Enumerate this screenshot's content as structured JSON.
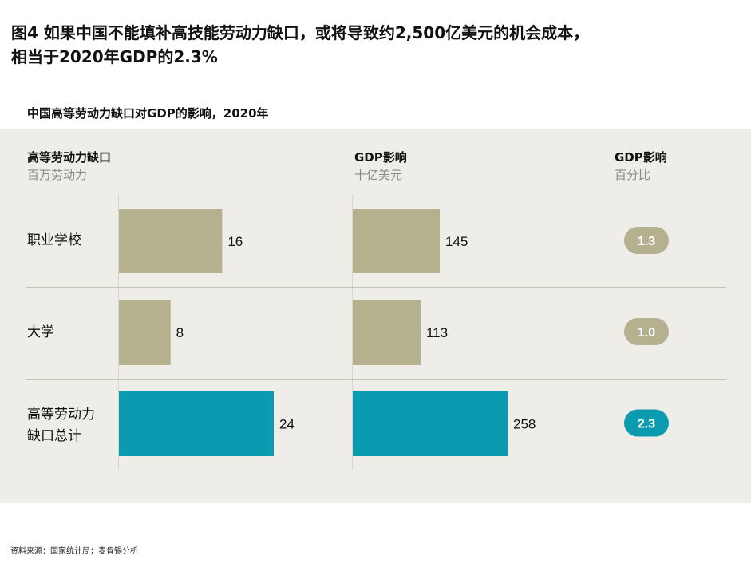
{
  "header": {
    "title_line1": "图4 如果中国不能填补高技能劳动力缺口，或将导致约2,500亿美元的机会成本，",
    "title_line2": "相当于2020年GDP的2.3%"
  },
  "chart_data": {
    "type": "bar",
    "title": "中国高等劳动力缺口对GDP的影响，2020年",
    "categories": [
      [
        "职业学校"
      ],
      [
        "大学"
      ],
      [
        "高等劳动力",
        "缺口总计"
      ]
    ],
    "columns": [
      {
        "header": "高等劳动力缺口",
        "unit": "百万劳动力",
        "values": [
          16,
          8,
          24
        ],
        "xlim": [
          0,
          24
        ]
      },
      {
        "header": "GDP影响",
        "unit": "十亿美元",
        "values": [
          145,
          113,
          258
        ],
        "xlim": [
          0,
          258
        ]
      },
      {
        "header": "GDP影响",
        "unit": "百分比",
        "values": [
          "1.3",
          "1.0",
          "2.3"
        ]
      }
    ],
    "highlight_category_index": 2,
    "colors": {
      "normal": "#b5b08e",
      "total": "#0a9bb1"
    }
  },
  "footer": {
    "source": "资料来源：国家统计局；麦肯锡分析"
  }
}
